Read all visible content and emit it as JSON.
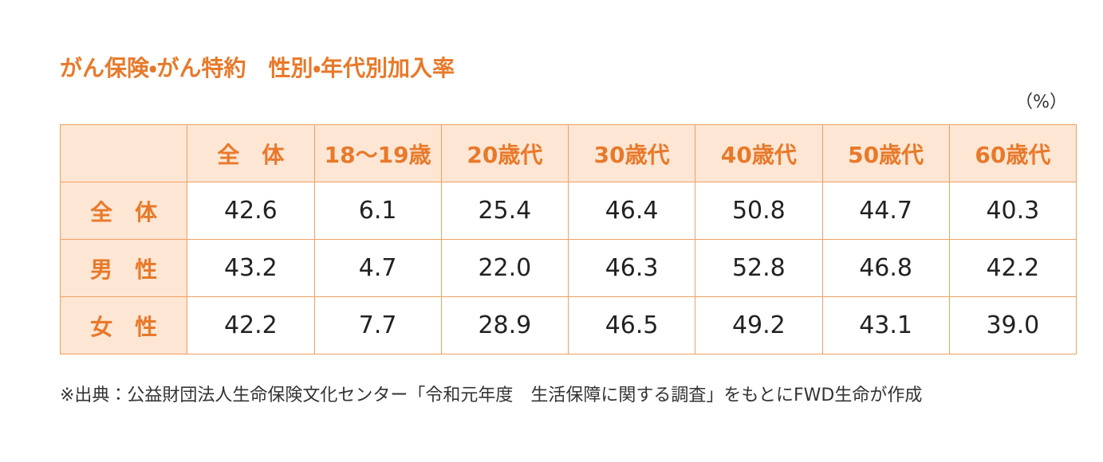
{
  "header": {
    "title": "がん保険・がん特約　性別・年代別加入率",
    "unit": "（%）"
  },
  "table": {
    "columns": [
      "全　体",
      "18〜19歳",
      "20歳代",
      "30歳代",
      "40歳代",
      "50歳代",
      "60歳代"
    ],
    "row_labels": [
      "全　体",
      "男　性",
      "女　性"
    ],
    "rows": [
      [
        "42.6",
        "6.1",
        "25.4",
        "46.4",
        "50.8",
        "44.7",
        "40.3"
      ],
      [
        "43.2",
        "4.7",
        "22.0",
        "46.3",
        "52.8",
        "46.8",
        "42.2"
      ],
      [
        "42.2",
        "7.7",
        "28.9",
        "46.5",
        "49.2",
        "43.1",
        "39.0"
      ]
    ]
  },
  "footnote": "※出典：公益財団法人生命保険文化センター「令和元年度　生活保障に関する調査」をもとにFWD生命が作成"
}
